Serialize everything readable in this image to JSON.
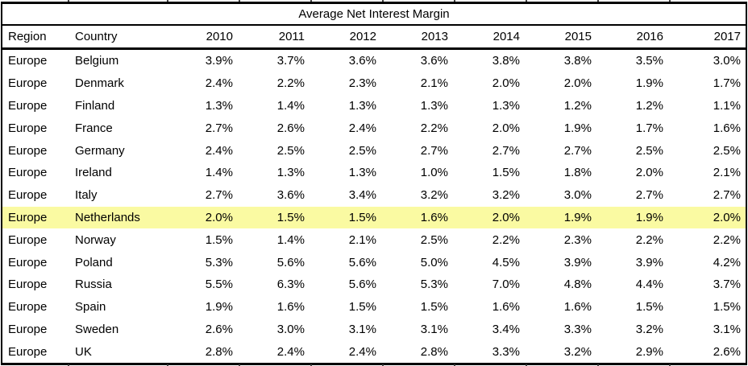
{
  "chart_data": {
    "type": "table",
    "title": "Average Net Interest Margin",
    "columns": [
      "Region",
      "Country",
      "2010",
      "2011",
      "2012",
      "2013",
      "2014",
      "2015",
      "2016",
      "2017"
    ],
    "rows": [
      {
        "region": "Europe",
        "country": "Belgium",
        "highlighted": false,
        "values": [
          "3.9%",
          "3.7%",
          "3.6%",
          "3.6%",
          "3.8%",
          "3.8%",
          "3.5%",
          "3.0%"
        ]
      },
      {
        "region": "Europe",
        "country": "Denmark",
        "highlighted": false,
        "values": [
          "2.4%",
          "2.2%",
          "2.3%",
          "2.1%",
          "2.0%",
          "2.0%",
          "1.9%",
          "1.7%"
        ]
      },
      {
        "region": "Europe",
        "country": "Finland",
        "highlighted": false,
        "values": [
          "1.3%",
          "1.4%",
          "1.3%",
          "1.3%",
          "1.3%",
          "1.2%",
          "1.2%",
          "1.1%"
        ]
      },
      {
        "region": "Europe",
        "country": "France",
        "highlighted": false,
        "values": [
          "2.7%",
          "2.6%",
          "2.4%",
          "2.2%",
          "2.0%",
          "1.9%",
          "1.7%",
          "1.6%"
        ]
      },
      {
        "region": "Europe",
        "country": "Germany",
        "highlighted": false,
        "values": [
          "2.4%",
          "2.5%",
          "2.5%",
          "2.7%",
          "2.7%",
          "2.7%",
          "2.5%",
          "2.5%"
        ]
      },
      {
        "region": "Europe",
        "country": "Ireland",
        "highlighted": false,
        "values": [
          "1.4%",
          "1.3%",
          "1.3%",
          "1.0%",
          "1.5%",
          "1.8%",
          "2.0%",
          "2.1%"
        ]
      },
      {
        "region": "Europe",
        "country": "Italy",
        "highlighted": false,
        "values": [
          "2.7%",
          "3.6%",
          "3.4%",
          "3.2%",
          "3.2%",
          "3.0%",
          "2.7%",
          "2.7%"
        ]
      },
      {
        "region": "Europe",
        "country": "Netherlands",
        "highlighted": true,
        "values": [
          "2.0%",
          "1.5%",
          "1.5%",
          "1.6%",
          "2.0%",
          "1.9%",
          "1.9%",
          "2.0%"
        ]
      },
      {
        "region": "Europe",
        "country": "Norway",
        "highlighted": false,
        "values": [
          "1.5%",
          "1.4%",
          "2.1%",
          "2.5%",
          "2.2%",
          "2.3%",
          "2.2%",
          "2.2%"
        ]
      },
      {
        "region": "Europe",
        "country": "Poland",
        "highlighted": false,
        "values": [
          "5.3%",
          "5.6%",
          "5.6%",
          "5.0%",
          "4.5%",
          "3.9%",
          "3.9%",
          "4.2%"
        ]
      },
      {
        "region": "Europe",
        "country": "Russia",
        "highlighted": false,
        "values": [
          "5.5%",
          "6.3%",
          "5.6%",
          "5.3%",
          "7.0%",
          "4.8%",
          "4.4%",
          "3.7%"
        ]
      },
      {
        "region": "Europe",
        "country": "Spain",
        "highlighted": false,
        "values": [
          "1.9%",
          "1.6%",
          "1.5%",
          "1.5%",
          "1.6%",
          "1.6%",
          "1.5%",
          "1.5%"
        ]
      },
      {
        "region": "Europe",
        "country": "Sweden",
        "highlighted": false,
        "values": [
          "2.6%",
          "3.0%",
          "3.1%",
          "3.1%",
          "3.4%",
          "3.3%",
          "3.2%",
          "3.1%"
        ]
      },
      {
        "region": "Europe",
        "country": "UK",
        "highlighted": false,
        "values": [
          "2.8%",
          "2.4%",
          "2.4%",
          "2.8%",
          "3.3%",
          "3.2%",
          "2.9%",
          "2.6%"
        ]
      }
    ],
    "highlighted_row": "Netherlands",
    "highlight_color": "#fafaa2",
    "layout": {
      "legend": "none",
      "grid": "none",
      "value_alignment": "right"
    }
  }
}
